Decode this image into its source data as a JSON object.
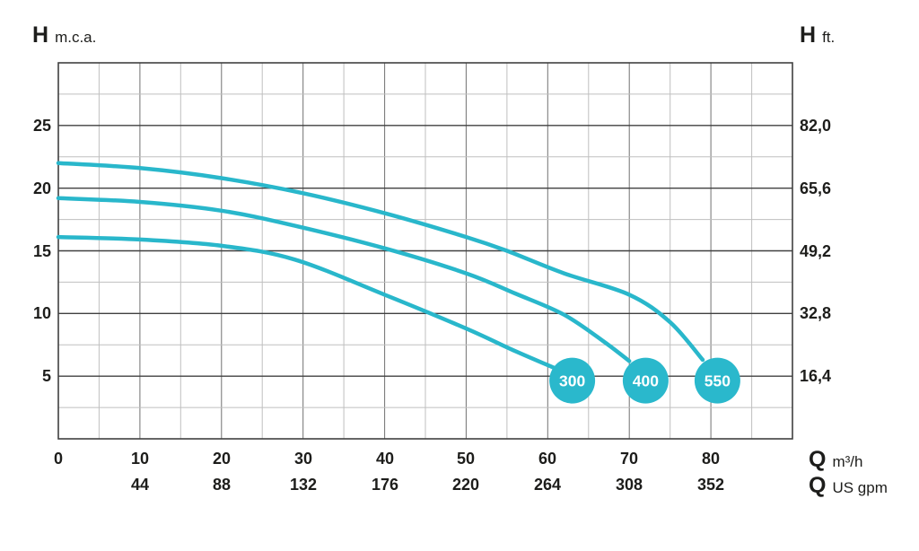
{
  "chart_data": {
    "type": "line",
    "title": "",
    "grid": true,
    "legend_position": "badges-on-chart",
    "x_axis": {
      "symbol": "Q",
      "units": [
        "m³/h",
        "US gpm"
      ],
      "range": [
        0,
        90
      ],
      "gridline_step": 5,
      "major_step": 10,
      "ticks": [
        {
          "value": 0,
          "m3h": "0",
          "usgpm": ""
        },
        {
          "value": 10,
          "m3h": "10",
          "usgpm": "44"
        },
        {
          "value": 20,
          "m3h": "20",
          "usgpm": "88"
        },
        {
          "value": 30,
          "m3h": "30",
          "usgpm": "132"
        },
        {
          "value": 40,
          "m3h": "40",
          "usgpm": "176"
        },
        {
          "value": 50,
          "m3h": "50",
          "usgpm": "220"
        },
        {
          "value": 60,
          "m3h": "60",
          "usgpm": "264"
        },
        {
          "value": 70,
          "m3h": "70",
          "usgpm": "308"
        },
        {
          "value": 80,
          "m3h": "80",
          "usgpm": "352"
        }
      ]
    },
    "y_axis": {
      "symbol": "H",
      "unit_left": "m.c.a.",
      "unit_right": "ft.",
      "range": [
        0,
        30
      ],
      "major_step": 5,
      "minor_step": 2.5,
      "ticks": [
        {
          "value": 25,
          "mca": "25",
          "ft": "82,0"
        },
        {
          "value": 20,
          "mca": "20",
          "ft": "65,6"
        },
        {
          "value": 15,
          "mca": "15",
          "ft": "49,2"
        },
        {
          "value": 10,
          "mca": "10",
          "ft": "32,8"
        },
        {
          "value": 5,
          "mca": "5",
          "ft": "16,4"
        }
      ]
    },
    "series": [
      {
        "name": "300",
        "badge": {
          "q": 63,
          "h": 4.65
        },
        "points": [
          [
            0,
            16.1
          ],
          [
            10,
            15.9
          ],
          [
            20,
            15.4
          ],
          [
            29,
            14.3
          ],
          [
            40,
            11.5
          ],
          [
            50,
            8.8
          ],
          [
            56,
            7.0
          ],
          [
            61,
            5.6
          ]
        ]
      },
      {
        "name": "400",
        "badge": {
          "q": 72,
          "h": 4.65
        },
        "points": [
          [
            0,
            19.2
          ],
          [
            10,
            18.9
          ],
          [
            20,
            18.2
          ],
          [
            29,
            17.0
          ],
          [
            40,
            15.2
          ],
          [
            50,
            13.2
          ],
          [
            56,
            11.6
          ],
          [
            62,
            9.9
          ],
          [
            67,
            7.7
          ],
          [
            70,
            6.2
          ]
        ]
      },
      {
        "name": "550",
        "badge": {
          "q": 80.8,
          "h": 4.65
        },
        "points": [
          [
            0,
            22.0
          ],
          [
            10,
            21.6
          ],
          [
            20,
            20.8
          ],
          [
            30,
            19.6
          ],
          [
            40,
            18.0
          ],
          [
            50,
            16.1
          ],
          [
            55,
            15.0
          ],
          [
            62,
            13.2
          ],
          [
            70,
            11.5
          ],
          [
            75,
            9.3
          ],
          [
            79,
            6.3
          ]
        ]
      }
    ]
  },
  "colors": {
    "curve": "#29b7cb",
    "badge": "#2ab8cc",
    "badge_text": "#ffffff",
    "grid_major_h": "#404040",
    "grid_major_v": "#717171",
    "grid_minor": "#bfbfbf",
    "border": "#404040",
    "text": "#1d1d1b",
    "background": "#ffffff"
  }
}
